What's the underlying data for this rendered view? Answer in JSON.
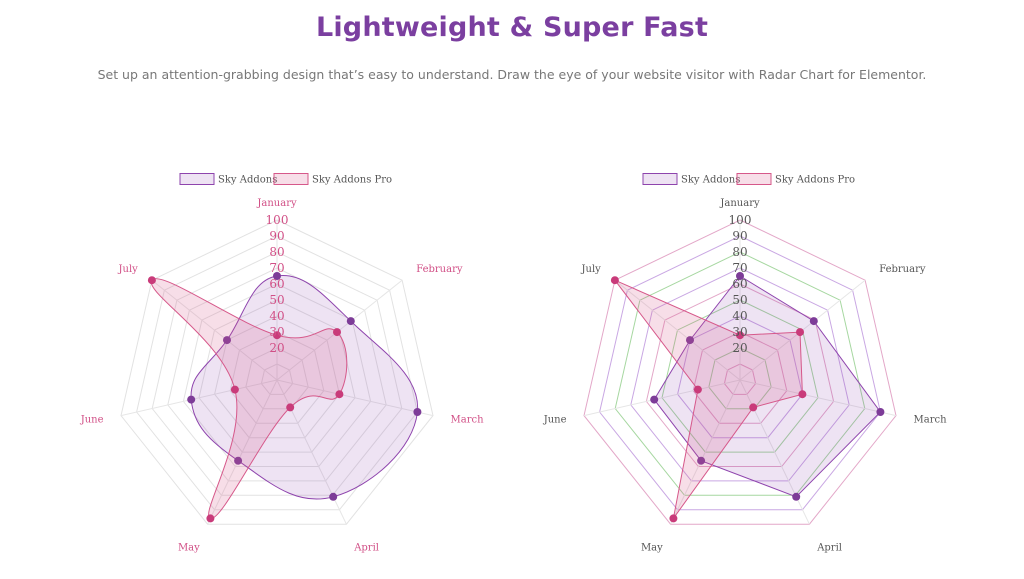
{
  "header": {
    "title": "Lightweight & Super Fast",
    "subtitle": "Set up an attention-grabbing design that’s easy to understand. Draw the eye of your website visitor with Radar Chart for Elementor."
  },
  "colors": {
    "title": "#7b3fa0",
    "subtitle": "#777777",
    "series1_line": "#8e44ad",
    "series1_fill": "rgba(142,68,173,0.15)",
    "series1_point": "#7d3c98",
    "series2_line": "#d6588a",
    "series2_fill": "rgba(214,88,138,0.2)",
    "series2_point": "#c93b7a",
    "chart1_labels": "#d14f86",
    "chart2_labels": "#555555"
  },
  "chart_data": [
    {
      "type": "radar",
      "categories": [
        "January",
        "February",
        "March",
        "April",
        "May",
        "June",
        "July"
      ],
      "ticks": [
        "20",
        "30",
        "40",
        "50",
        "60",
        "70",
        "80",
        "90",
        "100"
      ],
      "rlim": [
        0,
        100
      ],
      "curved": true,
      "grid": "neutral",
      "legend": "top-center",
      "series": [
        {
          "name": "Sky Addons",
          "values": [
            65,
            59,
            90,
            81,
            56,
            55,
            40
          ]
        },
        {
          "name": "Sky Addons Pro",
          "values": [
            28,
            48,
            40,
            19,
            96,
            27,
            100
          ]
        }
      ]
    },
    {
      "type": "radar",
      "categories": [
        "January",
        "February",
        "March",
        "April",
        "May",
        "June",
        "July"
      ],
      "ticks": [
        "20",
        "30",
        "40",
        "50",
        "60",
        "70",
        "80",
        "90",
        "100"
      ],
      "rlim": [
        0,
        100
      ],
      "curved": false,
      "grid": "colored",
      "legend": "top-center",
      "series": [
        {
          "name": "Sky Addons",
          "values": [
            65,
            59,
            90,
            81,
            56,
            55,
            40
          ]
        },
        {
          "name": "Sky Addons Pro",
          "values": [
            28,
            48,
            40,
            19,
            96,
            27,
            100
          ]
        }
      ]
    }
  ]
}
